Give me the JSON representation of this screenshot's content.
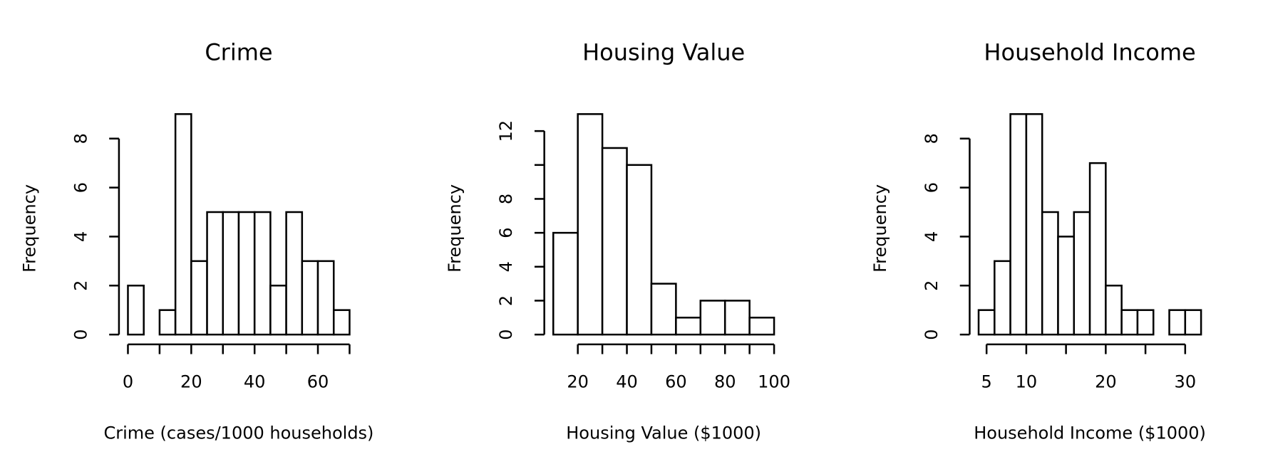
{
  "chart_data": [
    {
      "type": "histogram",
      "title": "Crime",
      "xlabel": "Crime (cases/1000 households)",
      "ylabel": "Frequency",
      "bins": [
        0,
        5,
        10,
        15,
        20,
        25,
        30,
        35,
        40,
        45,
        50,
        55,
        60,
        65,
        70
      ],
      "values": [
        2,
        0,
        1,
        9,
        3,
        5,
        5,
        5,
        5,
        2,
        5,
        3,
        3,
        1
      ],
      "color": "#ffffff",
      "xlim": [
        0,
        70
      ],
      "xticks": [
        0,
        20,
        40,
        60
      ],
      "xminorticks": [
        10,
        30,
        50,
        70
      ],
      "ylim": [
        0,
        9
      ],
      "yticks": [
        0,
        2,
        4,
        6,
        8
      ]
    },
    {
      "type": "histogram",
      "title": "Housing Value",
      "xlabel": "Housing Value ($1000)",
      "ylabel": "Frequency",
      "bins": [
        10,
        20,
        30,
        40,
        50,
        60,
        70,
        80,
        90,
        100
      ],
      "values": [
        6,
        13,
        11,
        10,
        3,
        1,
        2,
        2,
        1
      ],
      "color": "#ffffff",
      "xlim": [
        10,
        100
      ],
      "xticks": [
        20,
        40,
        60,
        80,
        100
      ],
      "xminorticks": [
        30,
        50,
        70,
        90
      ],
      "ylim": [
        0,
        13
      ],
      "yticks": [
        0,
        2,
        4,
        6,
        8,
        12
      ],
      "yminorticks": [
        10
      ]
    },
    {
      "type": "histogram",
      "title": "Household Income",
      "xlabel": "Household Income ($1000)",
      "ylabel": "Frequency",
      "bins": [
        4,
        6,
        8,
        10,
        12,
        14,
        16,
        18,
        20,
        22,
        24,
        26,
        28,
        30,
        32
      ],
      "values": [
        1,
        3,
        9,
        9,
        5,
        4,
        5,
        7,
        2,
        1,
        1,
        0,
        1,
        1
      ],
      "color": "#ffffff",
      "xlim": [
        4,
        32
      ],
      "xticks": [
        5,
        10,
        20,
        30
      ],
      "xminorticks": [
        15,
        25
      ],
      "ylim": [
        0,
        9
      ],
      "yticks": [
        0,
        2,
        4,
        6,
        8
      ]
    }
  ]
}
